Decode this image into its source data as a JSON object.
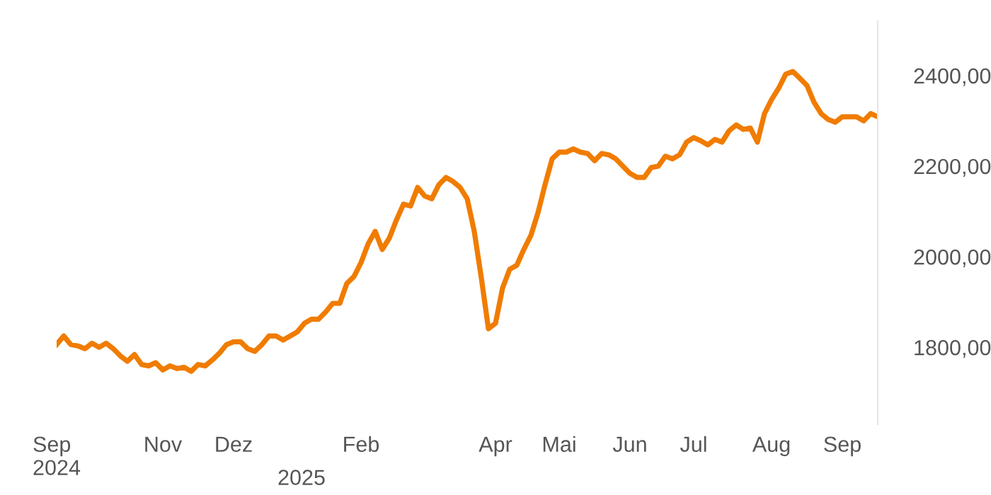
{
  "chart_data": {
    "type": "line",
    "categories": [
      "Sep\n2024",
      null,
      null,
      null,
      null,
      null,
      null,
      null,
      null,
      null,
      null,
      null,
      null,
      null,
      null,
      "Nov",
      null,
      null,
      null,
      null,
      null,
      null,
      null,
      null,
      null,
      "Dez",
      null,
      null,
      null,
      null,
      null,
      null,
      null,
      null,
      null,
      null,
      null,
      null,
      null,
      null,
      null,
      null,
      null,
      "Feb",
      null,
      null,
      null,
      null,
      null,
      null,
      null,
      null,
      null,
      null,
      null,
      null,
      null,
      null,
      null,
      null,
      null,
      null,
      "Apr",
      null,
      null,
      null,
      null,
      null,
      null,
      null,
      null,
      "Mai",
      null,
      null,
      null,
      null,
      null,
      null,
      null,
      null,
      null,
      "Jun",
      null,
      null,
      null,
      null,
      null,
      null,
      null,
      null,
      "Jul",
      null,
      null,
      null,
      null,
      null,
      null,
      null,
      null,
      null,
      null,
      "Aug",
      null,
      null,
      null,
      null,
      null,
      null,
      null,
      null,
      null,
      "Sep",
      null,
      null,
      null,
      null,
      null
    ],
    "series": [
      {
        "color": "#f07c00",
        "values": [
          1806,
          1825,
          1806,
          1803,
          1797,
          1809,
          1800,
          1809,
          1797,
          1781,
          1769,
          1784,
          1762,
          1759,
          1766,
          1750,
          1759,
          1753,
          1756,
          1747,
          1762,
          1759,
          1772,
          1787,
          1806,
          1812,
          1812,
          1797,
          1791,
          1806,
          1825,
          1825,
          1816,
          1825,
          1834,
          1853,
          1862,
          1862,
          1878,
          1897,
          1897,
          1941,
          1956,
          1987,
          2028,
          2056,
          2016,
          2041,
          2081,
          2116,
          2112,
          2153,
          2134,
          2128,
          2159,
          2175,
          2166,
          2153,
          2128,
          2056,
          1953,
          1841,
          1853,
          1931,
          1972,
          1981,
          2016,
          2047,
          2097,
          2159,
          2216,
          2231,
          2231,
          2238,
          2231,
          2228,
          2212,
          2228,
          2225,
          2216,
          2200,
          2184,
          2175,
          2175,
          2197,
          2200,
          2222,
          2216,
          2225,
          2253,
          2263,
          2256,
          2247,
          2259,
          2253,
          2278,
          2291,
          2281,
          2284,
          2253,
          2316,
          2347,
          2372,
          2403,
          2409,
          2394,
          2378,
          2341,
          2316,
          2303,
          2297,
          2309,
          2309,
          2309,
          2300,
          2316,
          2309
        ]
      }
    ],
    "ylim": [
      1630,
      2520
    ],
    "annotations": [
      "2025"
    ],
    "yticks": [
      {
        "value": 1800,
        "label": "1800,00"
      },
      {
        "value": 2000,
        "label": "2000,00"
      },
      {
        "value": 2200,
        "label": "2200,00"
      },
      {
        "value": 2400,
        "label": "2400,00"
      }
    ],
    "grid": false,
    "legend": false,
    "marker": "none",
    "line_style": "solid"
  }
}
